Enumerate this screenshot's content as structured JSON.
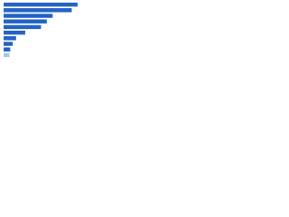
{
  "chart_data": {
    "type": "bar",
    "orientation": "horizontal",
    "categories": [
      null,
      null,
      null,
      null,
      null,
      null,
      null,
      null,
      null,
      null
    ],
    "values": [
      89,
      82,
      59,
      52,
      45,
      26,
      15,
      11,
      8,
      7
    ],
    "colors": [
      "#2463c6",
      "#2463c6",
      "#2463c6",
      "#2463c6",
      "#2463c6",
      "#2463c6",
      "#2463c6",
      "#2463c6",
      "#2463c6",
      "#a8c3ec"
    ],
    "xlim": [
      0,
      100
    ]
  }
}
